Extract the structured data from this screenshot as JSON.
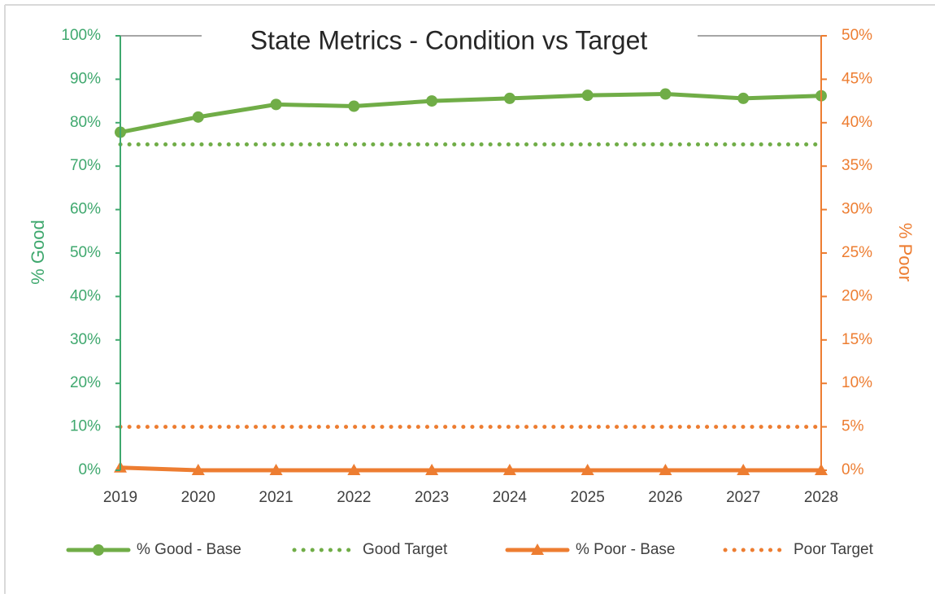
{
  "chart_data": {
    "type": "line",
    "title": "State Metrics - Condition vs Target",
    "categories": [
      "2019",
      "2020",
      "2021",
      "2022",
      "2023",
      "2024",
      "2025",
      "2026",
      "2027",
      "2028"
    ],
    "y_label": "% Good",
    "y2_label": "% Poor",
    "ylim": [
      0,
      100
    ],
    "yticks": [
      {
        "value": 0,
        "label": "0%"
      },
      {
        "value": 10,
        "label": "10%"
      },
      {
        "value": 20,
        "label": "20%"
      },
      {
        "value": 30,
        "label": "30%"
      },
      {
        "value": 40,
        "label": "40%"
      },
      {
        "value": 50,
        "label": "50%"
      },
      {
        "value": 60,
        "label": "60%"
      },
      {
        "value": 70,
        "label": "70%"
      },
      {
        "value": 80,
        "label": "80%"
      },
      {
        "value": 90,
        "label": "90%"
      },
      {
        "value": 100,
        "label": "100%"
      }
    ],
    "y2lim": [
      0,
      50
    ],
    "y2ticks": [
      {
        "value": 0,
        "label": "0%"
      },
      {
        "value": 5,
        "label": "5%"
      },
      {
        "value": 10,
        "label": "10%"
      },
      {
        "value": 15,
        "label": "15%"
      },
      {
        "value": 20,
        "label": "20%"
      },
      {
        "value": 25,
        "label": "25%"
      },
      {
        "value": 30,
        "label": "30%"
      },
      {
        "value": 35,
        "label": "35%"
      },
      {
        "value": 40,
        "label": "40%"
      },
      {
        "value": 45,
        "label": "45%"
      },
      {
        "value": 50,
        "label": "50%"
      }
    ],
    "y_color": "#3fa86e",
    "y2_color": "#ed7d31",
    "grid": false,
    "legend": "bottom",
    "series": [
      {
        "name": "% Good - Base",
        "color": "#70ad47",
        "marker": "circle",
        "style": "solid",
        "values": [
          77.8,
          81.3,
          84.2,
          83.8,
          85.0,
          85.6,
          86.3,
          86.6,
          85.6,
          86.2
        ]
      },
      {
        "name": "Good Target",
        "color": "#70ad47",
        "style": "dotted",
        "values": [
          75,
          75,
          75,
          75,
          75,
          75,
          75,
          75,
          75,
          75
        ]
      },
      {
        "name": "% Poor - Base",
        "color": "#ed7d31",
        "marker": "triangle",
        "style": "solid",
        "axis": "y2",
        "values": [
          0.3,
          0,
          0,
          0,
          0,
          0,
          0,
          0,
          0,
          0
        ]
      },
      {
        "name": "Poor Target",
        "color": "#ed7d31",
        "style": "dotted",
        "axis": "y2",
        "values": [
          5,
          5,
          5,
          5,
          5,
          5,
          5,
          5,
          5,
          5
        ]
      }
    ]
  }
}
